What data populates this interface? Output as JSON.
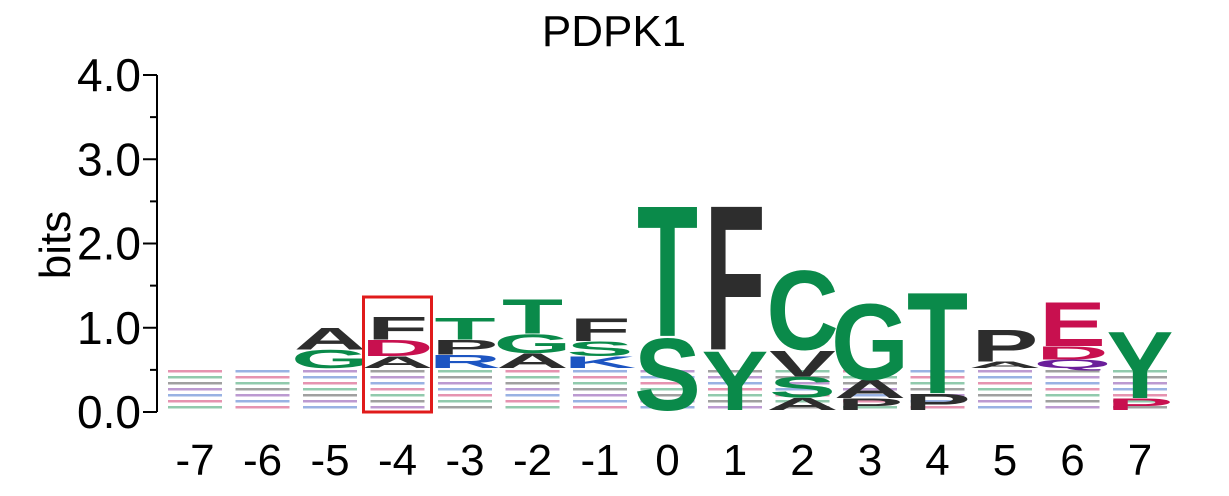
{
  "chart_data": {
    "type": "sequence-logo",
    "title": "PDPK1",
    "ylabel": "bits",
    "ylim": [
      0,
      4.0
    ],
    "yticks": [
      "0.0",
      "1.0",
      "2.0",
      "3.0",
      "4.0"
    ],
    "colors": {
      "green": "#0a8a4a",
      "black": "#2d2d2d",
      "red": "#c8104f",
      "blue": "#1d55c2",
      "purple": "#6a1e9a",
      "highlight": "#e01b1b"
    },
    "highlight_position": "-4",
    "positions": [
      {
        "label": "-7",
        "letters": []
      },
      {
        "label": "-6",
        "letters": []
      },
      {
        "label": "-5",
        "letters": [
          {
            "letter": "A",
            "color": "black",
            "height": 0.27
          },
          {
            "letter": "G",
            "color": "green",
            "height": 0.22
          }
        ]
      },
      {
        "label": "-4",
        "letters": [
          {
            "letter": "F",
            "color": "black",
            "height": 0.28
          },
          {
            "letter": "D",
            "color": "red",
            "height": 0.2
          },
          {
            "letter": "A",
            "color": "black",
            "height": 0.14
          }
        ]
      },
      {
        "label": "-3",
        "letters": [
          {
            "letter": "T",
            "color": "green",
            "height": 0.27
          },
          {
            "letter": "P",
            "color": "black",
            "height": 0.18
          },
          {
            "letter": "R",
            "color": "blue",
            "height": 0.16
          }
        ]
      },
      {
        "label": "-2",
        "letters": [
          {
            "letter": "T",
            "color": "green",
            "height": 0.42
          },
          {
            "letter": "G",
            "color": "green",
            "height": 0.23
          },
          {
            "letter": "A",
            "color": "black",
            "height": 0.18
          }
        ]
      },
      {
        "label": "-1",
        "letters": [
          {
            "letter": "F",
            "color": "black",
            "height": 0.28
          },
          {
            "letter": "S",
            "color": "green",
            "height": 0.18
          },
          {
            "letter": "K",
            "color": "blue",
            "height": 0.14
          }
        ]
      },
      {
        "label": "0",
        "letters": [
          {
            "letter": "T",
            "color": "green",
            "height": 1.6
          },
          {
            "letter": "S",
            "color": "green",
            "height": 0.88
          }
        ]
      },
      {
        "label": "1",
        "letters": [
          {
            "letter": "F",
            "color": "black",
            "height": 1.77
          },
          {
            "letter": "Y",
            "color": "green",
            "height": 0.72
          }
        ]
      },
      {
        "label": "2",
        "letters": [
          {
            "letter": "C",
            "color": "green",
            "height": 0.97
          },
          {
            "letter": "V",
            "color": "black",
            "height": 0.32
          },
          {
            "letter": "S",
            "color": "green",
            "height": 0.25
          },
          {
            "letter": "A",
            "color": "black",
            "height": 0.15
          }
        ]
      },
      {
        "label": "3",
        "letters": [
          {
            "letter": "G",
            "color": "green",
            "height": 0.93
          },
          {
            "letter": "A",
            "color": "black",
            "height": 0.22
          },
          {
            "letter": "P",
            "color": "black",
            "height": 0.14
          }
        ]
      },
      {
        "label": "4",
        "letters": [
          {
            "letter": "T",
            "color": "green",
            "height": 1.24
          },
          {
            "letter": "P",
            "color": "black",
            "height": 0.2
          }
        ]
      },
      {
        "label": "5",
        "letters": [
          {
            "letter": "P",
            "color": "black",
            "height": 0.39
          },
          {
            "letter": "A",
            "color": "black",
            "height": 0.08
          }
        ]
      },
      {
        "label": "6",
        "letters": [
          {
            "letter": "E",
            "color": "red",
            "height": 0.54
          },
          {
            "letter": "D",
            "color": "red",
            "height": 0.16
          },
          {
            "letter": "Q",
            "color": "purple",
            "height": 0.1
          }
        ]
      },
      {
        "label": "7",
        "letters": [
          {
            "letter": "Y",
            "color": "green",
            "height": 0.82
          },
          {
            "letter": "P",
            "color": "red",
            "height": 0.14
          }
        ]
      }
    ]
  }
}
